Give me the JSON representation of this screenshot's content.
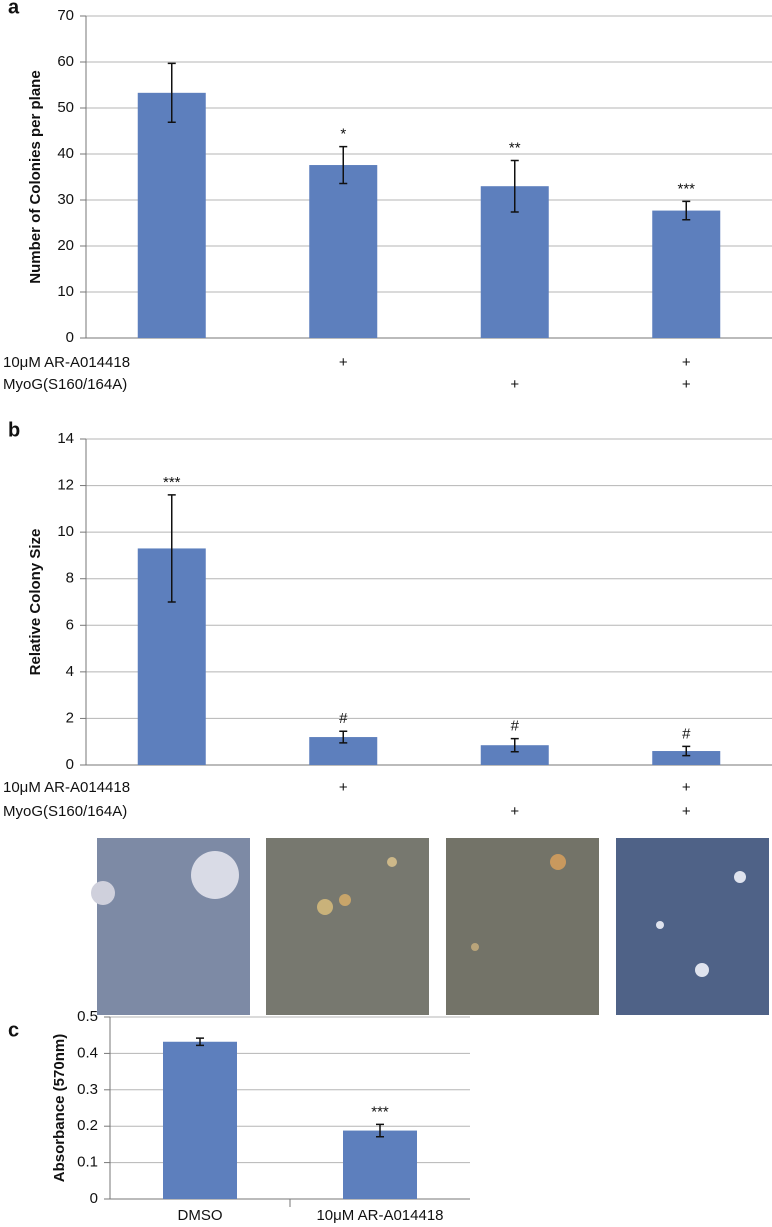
{
  "chart_data": [
    {
      "type": "bar",
      "panel": "a",
      "ylabel": "Number of Colonies per plane",
      "categories": [
        null,
        null,
        null,
        null
      ],
      "values": [
        53.3,
        37.6,
        33.0,
        27.7
      ],
      "errors": [
        6.4,
        4.0,
        5.6,
        2.0
      ],
      "annotations": [
        null,
        "*",
        "**",
        "***"
      ],
      "rows": [
        {
          "label": "10μM AR-A014418",
          "marks": [
            null,
            "+",
            null,
            "+"
          ]
        },
        {
          "label": "MyoG(S160/164A)",
          "marks": [
            null,
            null,
            "+",
            "+"
          ]
        }
      ],
      "color": "#5d7fbd",
      "ylim": [
        0,
        70
      ],
      "yticks": [
        0,
        10,
        20,
        30,
        40,
        50,
        60,
        70
      ],
      "grid": true
    },
    {
      "type": "bar",
      "panel": "b",
      "ylabel": "Relative Colony Size",
      "categories": [
        null,
        null,
        null,
        null
      ],
      "values": [
        9.3,
        1.2,
        0.85,
        0.6
      ],
      "errors": [
        2.3,
        0.25,
        0.28,
        0.2
      ],
      "annotations": [
        "***",
        "#",
        "#",
        "#"
      ],
      "rows": [
        {
          "label": "10μM AR-A014418",
          "marks": [
            null,
            "+",
            null,
            "+"
          ]
        },
        {
          "label": "MyoG(S160/164A)",
          "marks": [
            null,
            null,
            "+",
            "+"
          ]
        }
      ],
      "color": "#5d7fbd",
      "ylim": [
        0,
        14
      ],
      "yticks": [
        0,
        2,
        4,
        6,
        8,
        10,
        12,
        14
      ],
      "grid": true
    },
    {
      "type": "bar",
      "panel": "c",
      "ylabel": "Absorbance (570nm)",
      "categories": [
        "DMSO",
        "10μM AR-A014418"
      ],
      "values": [
        0.432,
        0.188
      ],
      "errors": [
        0.01,
        0.017
      ],
      "annotations": [
        null,
        "***"
      ],
      "color": "#5d7fbd",
      "ylim": [
        0,
        0.5
      ],
      "yticks": [
        0,
        0.1,
        0.2,
        0.3,
        0.4,
        0.5
      ],
      "grid": true
    }
  ]
}
